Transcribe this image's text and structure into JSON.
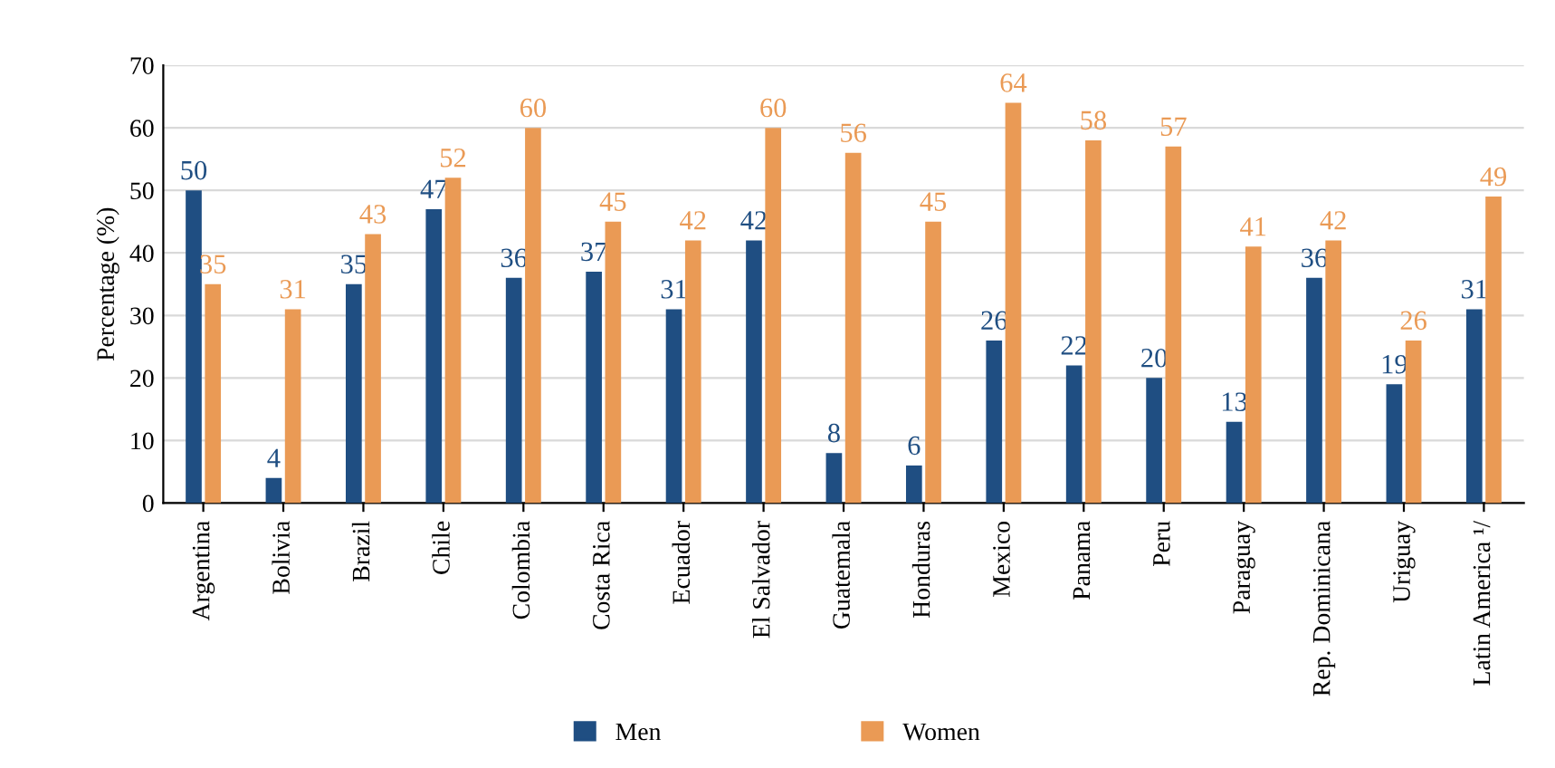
{
  "chart_data": {
    "type": "bar",
    "ylabel": "Percentage (%)",
    "categories": [
      "Argentina",
      "Bolivia",
      "Brazil",
      "Chile",
      "Colombia",
      "Costa Rica",
      "Ecuador",
      "El Salvador",
      "Guatemala",
      "Honduras",
      "Mexico",
      "Panama",
      "Peru",
      "Paraguay",
      "Rep. Dominicana",
      "Uriguay",
      "Latin America ¹/"
    ],
    "series": [
      {
        "name": "Men",
        "color": "#1f4e82",
        "values": [
          50,
          4,
          35,
          47,
          36,
          37,
          31,
          42,
          8,
          6,
          26,
          22,
          20,
          13,
          36,
          19,
          31
        ]
      },
      {
        "name": "Women",
        "color": "#ea9a55",
        "values": [
          35,
          31,
          43,
          52,
          60,
          45,
          42,
          60,
          56,
          45,
          64,
          58,
          57,
          41,
          42,
          26,
          49
        ]
      }
    ],
    "ylim": [
      0,
      70
    ],
    "yticks": [
      0,
      10,
      20,
      30,
      40,
      50,
      60,
      70
    ],
    "grid": "y",
    "legend": "bottom",
    "data_labels": true
  }
}
